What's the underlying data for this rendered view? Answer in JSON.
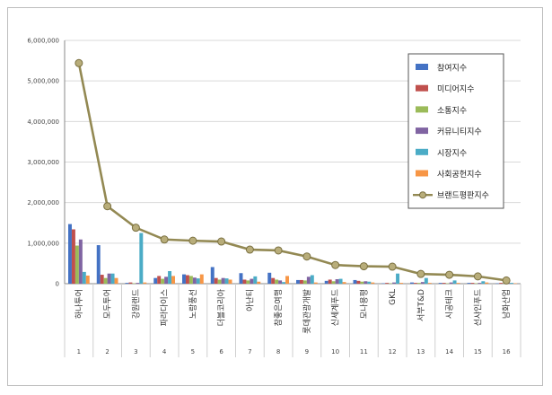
{
  "chart_data": {
    "type": "bar",
    "title": "",
    "xlabel": "",
    "ylabel": "",
    "ylim": [
      0,
      6000000
    ],
    "yticks": [
      "0",
      "1,000,000",
      "2,000,000",
      "3,000,000",
      "4,000,000",
      "5,000,000",
      "6,000,000"
    ],
    "grid": true,
    "legend_position": "right",
    "categories": [
      "하나투어",
      "모두투어",
      "강원랜드",
      "파라다이스",
      "노랑풍선",
      "더블코리아",
      "아난티",
      "참좋은여행",
      "롯데관광개발",
      "신세계푸드",
      "모나용평",
      "GKL",
      "서부T&D",
      "시공테크",
      "선샤인푸드",
      "남화산업"
    ],
    "indices": [
      "1",
      "2",
      "3",
      "4",
      "5",
      "6",
      "7",
      "8",
      "9",
      "10",
      "11",
      "12",
      "13",
      "14",
      "15",
      "16"
    ],
    "series": [
      {
        "name": "참여지수",
        "color": "#4472C4",
        "values": [
          1470000,
          950000,
          20000,
          140000,
          230000,
          410000,
          260000,
          270000,
          90000,
          70000,
          90000,
          10000,
          30000,
          20000,
          20000,
          10000
        ]
      },
      {
        "name": "미디어지수",
        "color": "#C0504D",
        "values": [
          1340000,
          220000,
          30000,
          190000,
          210000,
          140000,
          100000,
          140000,
          90000,
          100000,
          70000,
          20000,
          20000,
          20000,
          20000,
          20000
        ]
      },
      {
        "name": "소통지수",
        "color": "#9BBB59",
        "values": [
          940000,
          140000,
          10000,
          120000,
          190000,
          100000,
          80000,
          100000,
          80000,
          60000,
          50000,
          10000,
          20000,
          10000,
          10000,
          10000
        ]
      },
      {
        "name": "커뮤니티지수",
        "color": "#8064A2",
        "values": [
          1090000,
          250000,
          20000,
          170000,
          150000,
          140000,
          120000,
          80000,
          170000,
          110000,
          60000,
          30000,
          40000,
          30000,
          20000,
          20000
        ]
      },
      {
        "name": "시장지수",
        "color": "#4BACC6",
        "values": [
          290000,
          250000,
          1250000,
          310000,
          130000,
          130000,
          180000,
          40000,
          210000,
          120000,
          50000,
          250000,
          140000,
          80000,
          60000,
          20000
        ]
      },
      {
        "name": "사회공헌지수",
        "color": "#F79646",
        "values": [
          200000,
          140000,
          30000,
          190000,
          230000,
          100000,
          50000,
          190000,
          30000,
          40000,
          30000,
          20000,
          20000,
          20000,
          30000,
          10000
        ]
      }
    ],
    "line_series": {
      "name": "브랜드평판지수",
      "color": "#938953",
      "values": [
        5440000,
        1910000,
        1380000,
        1090000,
        1060000,
        1040000,
        840000,
        820000,
        670000,
        460000,
        430000,
        420000,
        240000,
        220000,
        180000,
        80000
      ]
    }
  }
}
